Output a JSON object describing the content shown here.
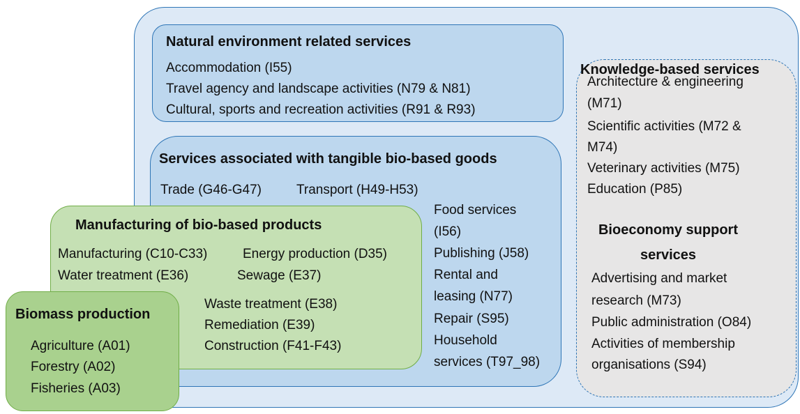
{
  "groups": {
    "natural_environment": {
      "title": "Natural environment related services",
      "items": [
        [
          "Accommodation (I55)"
        ],
        [
          "Travel agency and landscape activities (N79 & N81)"
        ],
        [
          "Cultural, sports and recreation activities (R91 & R93)"
        ]
      ]
    },
    "knowledge": {
      "title": "Knowledge-based services",
      "items": [
        [
          "Architecture & engineering",
          "(M71)"
        ],
        [
          "Scientific activities (M72 &",
          "M74)"
        ],
        [
          "Veterinary activities (M75)"
        ],
        [
          "Education (P85)"
        ]
      ]
    },
    "support": {
      "title": [
        "Bioeconomy support",
        "services"
      ],
      "items": [
        [
          "Advertising and market",
          "research (M73)"
        ],
        [
          "Public administration (O84)"
        ],
        [
          "Activities of membership",
          "organisations (S94)"
        ]
      ]
    },
    "tangible": {
      "title": "Services associated with tangible bio-based goods",
      "items": [
        [
          "Trade (G46-G47)"
        ],
        [
          "Transport (H49-H53)"
        ],
        [
          "Food services",
          "(I56)"
        ],
        [
          "Publishing (J58)"
        ],
        [
          "Rental and",
          "leasing (N77)"
        ],
        [
          "Repair (S95)"
        ],
        [
          "Household",
          "services (T97_98)"
        ]
      ]
    },
    "manufacturing": {
      "title": "Manufacturing of bio-based products",
      "items": [
        [
          "Manufacturing (C10-C33)"
        ],
        [
          "Energy production (D35)"
        ],
        [
          "Water treatment (E36)"
        ],
        [
          "Sewage (E37)"
        ],
        [
          "Waste treatment (E38)"
        ],
        [
          "Remediation (E39)"
        ],
        [
          "Construction (F41-F43)"
        ]
      ]
    },
    "biomass": {
      "title": "Biomass production",
      "items": [
        [
          "Agriculture (A01)"
        ],
        [
          "Forestry (A02)"
        ],
        [
          "Fisheries (A03)"
        ]
      ]
    }
  }
}
